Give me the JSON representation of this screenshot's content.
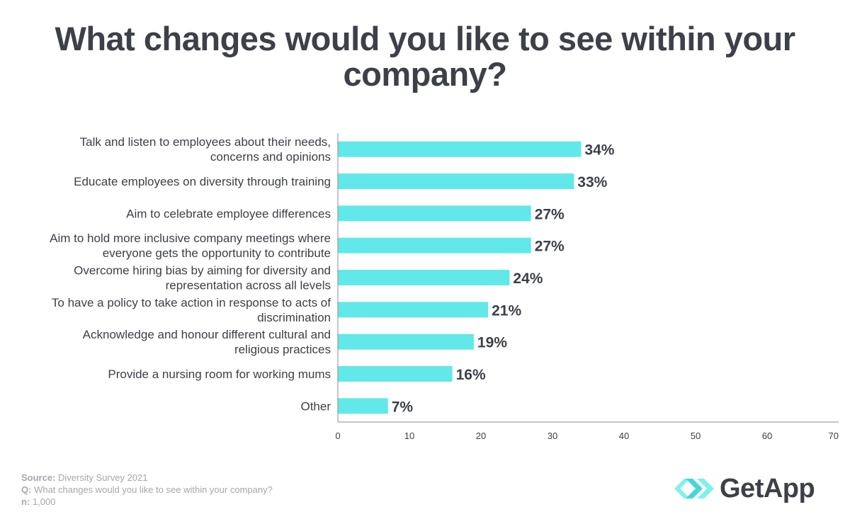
{
  "title_lines": [
    "What changes would you like to see within your",
    "company?"
  ],
  "chart_data": {
    "type": "bar",
    "orientation": "horizontal",
    "title": "What changes would you like to see within your company?",
    "categories": [
      [
        "Talk and listen to employees about their needs,",
        "concerns and opinions"
      ],
      [
        "Educate employees on diversity through training"
      ],
      [
        "Aim to celebrate employee differences"
      ],
      [
        "Aim to hold more inclusive company meetings where",
        "everyone gets the opportunity to contribute"
      ],
      [
        "Overcome hiring bias by aiming for diversity and",
        "representation across all levels"
      ],
      [
        "To have a policy to take action in response to acts of",
        "discrimination"
      ],
      [
        "Acknowledge and honour different cultural and",
        "religious practices"
      ],
      [
        "Provide a nursing room for working mums"
      ],
      [
        "Other"
      ]
    ],
    "values": [
      34,
      33,
      27,
      27,
      24,
      21,
      19,
      16,
      7
    ],
    "value_labels": [
      "34%",
      "33%",
      "27%",
      "27%",
      "24%",
      "21%",
      "19%",
      "16%",
      "7%"
    ],
    "xlim": [
      0,
      70
    ],
    "xticks": [
      0,
      10,
      20,
      30,
      40,
      50,
      60,
      70
    ],
    "bar_color": "#62e8e8",
    "axis_color": "#8a8d94",
    "text_color": "#3d4049",
    "grid": false
  },
  "footer": {
    "source_label": "Source:",
    "source_value": " Diversity Survey 2021",
    "q_label": "Q:",
    "q_value": " What changes would you like to see within your company?",
    "n_label": "n:",
    "n_value": " 1,000"
  },
  "logo": {
    "text": "GetApp",
    "icon": "getapp-chevrons-icon",
    "colors": [
      "#7ff0ee",
      "#45d6d8"
    ]
  }
}
